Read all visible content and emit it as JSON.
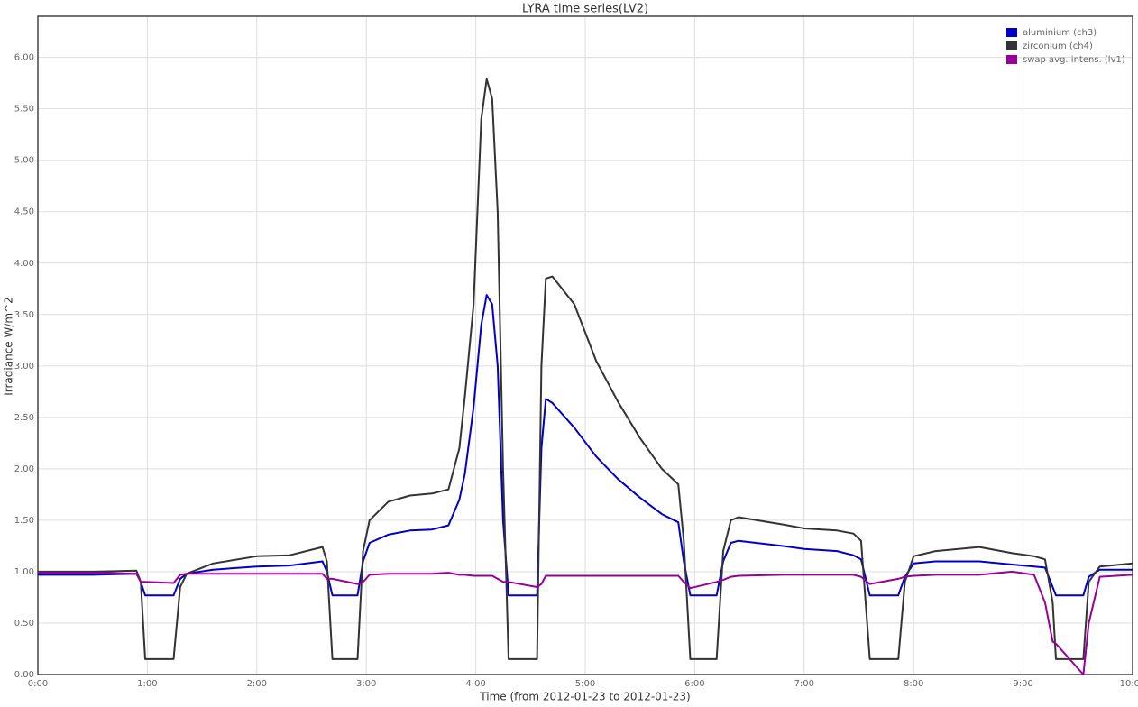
{
  "chart_data": {
    "type": "line",
    "title": "LYRA time series(LV2)",
    "x_label": "Time (from 2012-01-23 to 2012-01-23)",
    "y_label": "Irradiance W/m^2",
    "x": [
      0,
      0.5,
      0.9,
      0.94,
      0.98,
      1.24,
      1.3,
      1.36,
      1.6,
      2.0,
      2.3,
      2.6,
      2.64,
      2.69,
      2.92,
      2.97,
      3.03,
      3.2,
      3.4,
      3.6,
      3.75,
      3.85,
      3.9,
      3.98,
      4.05,
      4.1,
      4.15,
      4.2,
      4.25,
      4.3,
      4.56,
      4.6,
      4.64,
      4.7,
      4.9,
      5.1,
      5.3,
      5.5,
      5.7,
      5.85,
      5.9,
      5.96,
      6.2,
      6.26,
      6.33,
      6.4,
      6.8,
      7.0,
      7.3,
      7.45,
      7.52,
      7.6,
      7.86,
      7.92,
      8.0,
      8.2,
      8.6,
      8.9,
      9.1,
      9.2,
      9.27,
      9.3,
      9.55,
      9.6,
      9.7,
      10
    ],
    "series": [
      {
        "name": "aluminium (ch3)",
        "color": "#0000cc",
        "values": [
          0.97,
          0.97,
          0.98,
          0.9,
          0.77,
          0.77,
          0.93,
          0.98,
          1.02,
          1.05,
          1.06,
          1.1,
          1.0,
          0.77,
          0.77,
          1.1,
          1.28,
          1.36,
          1.4,
          1.41,
          1.45,
          1.7,
          1.95,
          2.6,
          3.4,
          3.69,
          3.6,
          3.0,
          1.5,
          0.77,
          0.77,
          2.2,
          2.68,
          2.64,
          2.4,
          2.12,
          1.9,
          1.72,
          1.56,
          1.48,
          1.1,
          0.77,
          0.77,
          1.1,
          1.28,
          1.3,
          1.25,
          1.22,
          1.2,
          1.16,
          1.12,
          0.77,
          0.77,
          0.95,
          1.08,
          1.1,
          1.1,
          1.07,
          1.05,
          1.04,
          0.85,
          0.77,
          0.77,
          0.95,
          1.02,
          1.02
        ]
      },
      {
        "name": "zirconium (ch4)",
        "color": "#333333",
        "values": [
          1.0,
          1.0,
          1.01,
          0.9,
          0.15,
          0.15,
          0.85,
          0.98,
          1.08,
          1.15,
          1.16,
          1.24,
          1.1,
          0.15,
          0.15,
          1.2,
          1.5,
          1.68,
          1.74,
          1.76,
          1.8,
          2.2,
          2.7,
          3.6,
          5.4,
          5.79,
          5.6,
          4.5,
          2.0,
          0.15,
          0.15,
          3.0,
          3.85,
          3.87,
          3.6,
          3.05,
          2.65,
          2.3,
          2.0,
          1.85,
          1.3,
          0.15,
          0.15,
          1.2,
          1.5,
          1.53,
          1.46,
          1.42,
          1.4,
          1.37,
          1.3,
          0.15,
          0.15,
          0.9,
          1.15,
          1.2,
          1.24,
          1.18,
          1.15,
          1.12,
          0.7,
          0.15,
          0.15,
          0.9,
          1.05,
          1.08
        ]
      },
      {
        "name": "swap avg. intens. (lv1)",
        "color": "#990099",
        "values": [
          0.99,
          0.99,
          0.98,
          0.9,
          0.9,
          0.89,
          0.97,
          0.98,
          0.98,
          0.98,
          0.98,
          0.98,
          0.93,
          0.93,
          0.88,
          0.9,
          0.97,
          0.98,
          0.98,
          0.98,
          0.99,
          0.97,
          0.97,
          0.96,
          0.96,
          0.96,
          0.96,
          0.93,
          0.9,
          0.9,
          0.85,
          0.88,
          0.96,
          0.96,
          0.96,
          0.96,
          0.96,
          0.96,
          0.96,
          0.96,
          0.9,
          0.84,
          0.9,
          0.92,
          0.95,
          0.96,
          0.97,
          0.97,
          0.97,
          0.97,
          0.95,
          0.88,
          0.93,
          0.95,
          0.96,
          0.97,
          0.97,
          1.0,
          0.97,
          0.7,
          0.32,
          0.3,
          0,
          0.5,
          0.95,
          0.97
        ]
      }
    ],
    "xlim": [
      0,
      10
    ],
    "xticks": [
      {
        "value": 0,
        "label": "0:00"
      },
      {
        "value": 1,
        "label": "1:00"
      },
      {
        "value": 2,
        "label": "2:00"
      },
      {
        "value": 3,
        "label": "3:00"
      },
      {
        "value": 4,
        "label": "4:00"
      },
      {
        "value": 5,
        "label": "5:00"
      },
      {
        "value": 6,
        "label": "6:00"
      },
      {
        "value": 7,
        "label": "7:00"
      },
      {
        "value": 8,
        "label": "8:00"
      },
      {
        "value": 9,
        "label": "9:00"
      },
      {
        "value": 10,
        "label": "10:00"
      }
    ],
    "ylim": [
      0,
      6.4
    ],
    "yticks": [
      {
        "value": 0,
        "label": "0.00"
      },
      {
        "value": 0.5,
        "label": "0.50"
      },
      {
        "value": 1,
        "label": "1.00"
      },
      {
        "value": 1.5,
        "label": "1.50"
      },
      {
        "value": 2,
        "label": "2.00"
      },
      {
        "value": 2.5,
        "label": "2.50"
      },
      {
        "value": 3,
        "label": "3.00"
      },
      {
        "value": 3.5,
        "label": "3.50"
      },
      {
        "value": 4,
        "label": "4.00"
      },
      {
        "value": 4.5,
        "label": "4.50"
      },
      {
        "value": 5,
        "label": "5.00"
      },
      {
        "value": 5.5,
        "label": "5.50"
      },
      {
        "value": 6,
        "label": "6.00"
      }
    ],
    "grid": true,
    "legend": "top-right"
  }
}
